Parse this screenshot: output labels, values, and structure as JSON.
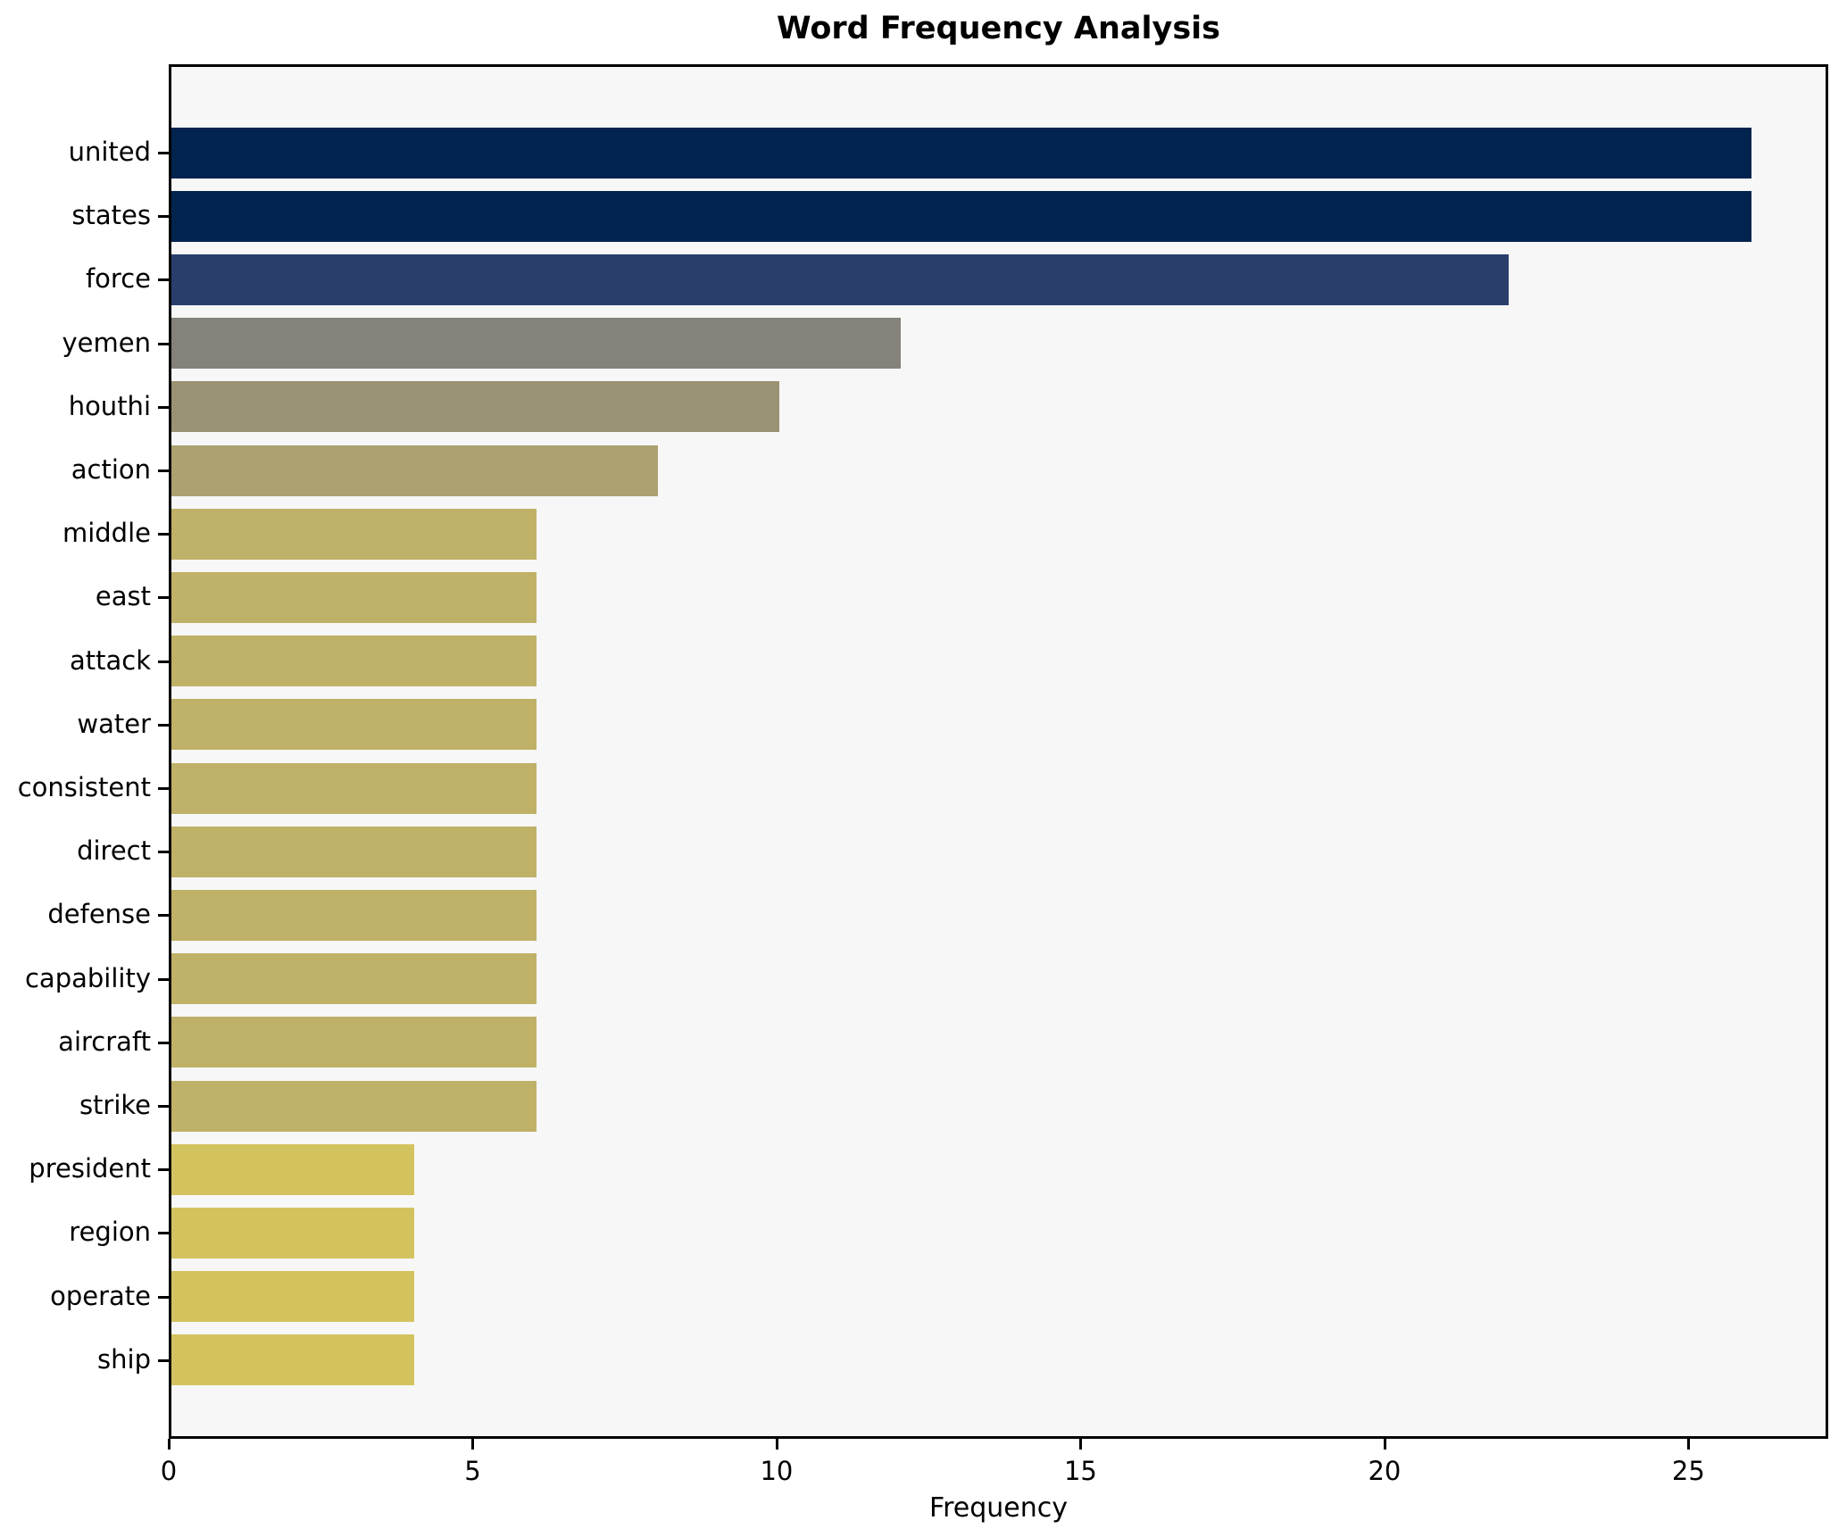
{
  "chart_data": {
    "type": "bar",
    "orientation": "horizontal",
    "title": "Word Frequency Analysis",
    "xlabel": "Frequency",
    "ylabel": "",
    "categories": [
      "united",
      "states",
      "force",
      "yemen",
      "houthi",
      "action",
      "middle",
      "east",
      "attack",
      "water",
      "consistent",
      "direct",
      "defense",
      "capability",
      "aircraft",
      "strike",
      "president",
      "region",
      "operate",
      "ship"
    ],
    "values": [
      26,
      26,
      22,
      12,
      10,
      8,
      6,
      6,
      6,
      6,
      6,
      6,
      6,
      6,
      6,
      6,
      4,
      4,
      4,
      4
    ],
    "bar_colors": [
      "#02234e",
      "#02234e",
      "#2a3e6c",
      "#84827a",
      "#999374",
      "#aca171",
      "#bfb168",
      "#bfb168",
      "#bfb168",
      "#bfb168",
      "#bfb168",
      "#bfb168",
      "#bfb168",
      "#bfb168",
      "#bfb168",
      "#bfb168",
      "#d3c35f",
      "#d3c35f",
      "#d3c35f",
      "#d3c35f"
    ],
    "xlim": [
      0,
      27.3
    ],
    "xticks": [
      0,
      5,
      10,
      15,
      20,
      25
    ],
    "grid": false,
    "legend": null,
    "colors": {
      "plot_background": "#f7f7f7",
      "figure_background": "#ffffff",
      "spine": "#000000",
      "text": "#000000"
    }
  }
}
